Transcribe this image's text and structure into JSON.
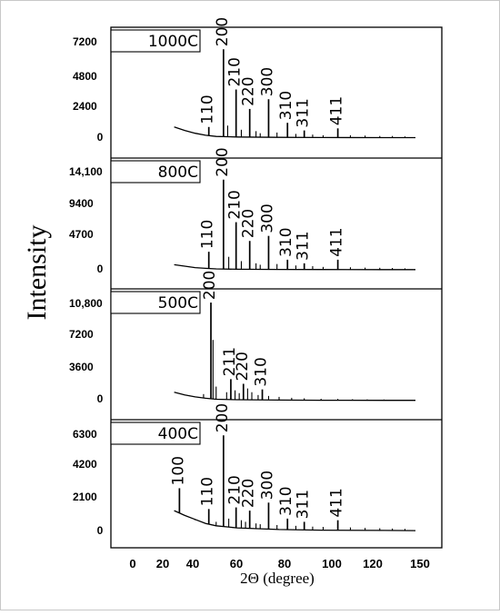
{
  "chart_data": {
    "type": "line",
    "ylabel": "Intensity",
    "xlabel": "2Θ (degree)",
    "x_ticks": [
      "0",
      "20",
      "40",
      "60",
      "80",
      "100",
      "120",
      "150"
    ],
    "xlim": [
      0,
      150
    ],
    "panels": [
      {
        "label": "1000C",
        "y_ticks": [
          "7200",
          "4800",
          "2400",
          "0"
        ],
        "ylim": [
          0,
          7200
        ],
        "baseline": [
          [
            30,
            800
          ],
          [
            35,
            550
          ],
          [
            40,
            350
          ],
          [
            45,
            200
          ],
          [
            50,
            120
          ],
          [
            60,
            80
          ],
          [
            80,
            50
          ],
          [
            100,
            40
          ],
          [
            130,
            30
          ],
          [
            145,
            30
          ]
        ],
        "peaks": [
          {
            "x": 46.5,
            "y": 800,
            "label": "110"
          },
          {
            "x": 53.5,
            "y": 6400,
            "label": "200"
          },
          {
            "x": 59.5,
            "y": 3500,
            "label": "210"
          },
          {
            "x": 66,
            "y": 2100,
            "label": "220"
          },
          {
            "x": 75,
            "y": 2800,
            "label": "300"
          },
          {
            "x": 84,
            "y": 1100,
            "label": "310"
          },
          {
            "x": 92,
            "y": 550,
            "label": "311"
          },
          {
            "x": 108,
            "y": 700,
            "label": "411"
          }
        ],
        "minor_peaks": [
          [
            55.5,
            900
          ],
          [
            62,
            600
          ],
          [
            69,
            500
          ],
          [
            71,
            350
          ],
          [
            79,
            400
          ],
          [
            88,
            300
          ],
          [
            96,
            250
          ],
          [
            101,
            200
          ],
          [
            114,
            200
          ],
          [
            121,
            180
          ],
          [
            128,
            150
          ],
          [
            134,
            150
          ],
          [
            140,
            120
          ]
        ]
      },
      {
        "label": "800C",
        "y_ticks": [
          "14,100",
          "9400",
          "4700",
          "0"
        ],
        "ylim": [
          0,
          14100
        ],
        "baseline": [
          [
            30,
            700
          ],
          [
            35,
            500
          ],
          [
            40,
            300
          ],
          [
            45,
            200
          ],
          [
            50,
            120
          ],
          [
            60,
            80
          ],
          [
            80,
            50
          ],
          [
            100,
            40
          ],
          [
            130,
            30
          ],
          [
            145,
            30
          ]
        ],
        "peaks": [
          {
            "x": 46.5,
            "y": 2500,
            "label": "110"
          },
          {
            "x": 53.5,
            "y": 12500,
            "label": "200"
          },
          {
            "x": 59.5,
            "y": 6600,
            "label": "210"
          },
          {
            "x": 66,
            "y": 4000,
            "label": "220"
          },
          {
            "x": 75,
            "y": 4700,
            "label": "300"
          },
          {
            "x": 84,
            "y": 1400,
            "label": "310"
          },
          {
            "x": 92,
            "y": 900,
            "label": "311"
          },
          {
            "x": 108,
            "y": 1400,
            "label": "411"
          }
        ],
        "minor_peaks": [
          [
            38,
            400
          ],
          [
            56,
            1800
          ],
          [
            62,
            1200
          ],
          [
            69,
            900
          ],
          [
            71,
            700
          ],
          [
            79,
            800
          ],
          [
            88,
            600
          ],
          [
            96,
            500
          ],
          [
            101,
            400
          ],
          [
            114,
            350
          ],
          [
            121,
            300
          ],
          [
            128,
            280
          ],
          [
            134,
            250
          ],
          [
            140,
            200
          ]
        ]
      },
      {
        "label": "500C",
        "y_ticks": [
          "10,800",
          "7200",
          "3600",
          "0"
        ],
        "ylim": [
          0,
          10800
        ],
        "baseline": [
          [
            30,
            900
          ],
          [
            35,
            600
          ],
          [
            40,
            400
          ],
          [
            45,
            250
          ],
          [
            50,
            150
          ],
          [
            60,
            100
          ],
          [
            80,
            60
          ],
          [
            100,
            40
          ],
          [
            130,
            30
          ],
          [
            145,
            30
          ]
        ],
        "peaks": [
          {
            "x": 47.5,
            "y": 10500,
            "label": "200"
          },
          {
            "x": 57,
            "y": 2300,
            "label": "211"
          },
          {
            "x": 63,
            "y": 1800,
            "label": "220"
          },
          {
            "x": 72,
            "y": 1200,
            "label": "310"
          }
        ],
        "minor_peaks": [
          [
            44,
            700
          ],
          [
            48.5,
            6500
          ],
          [
            50,
            1500
          ],
          [
            55,
            900
          ],
          [
            59,
            1100
          ],
          [
            61,
            800
          ],
          [
            65,
            1300
          ],
          [
            67,
            900
          ],
          [
            70,
            600
          ],
          [
            75,
            500
          ],
          [
            80,
            400
          ],
          [
            86,
            300
          ],
          [
            92,
            250
          ],
          [
            100,
            200
          ],
          [
            108,
            180
          ],
          [
            115,
            150
          ],
          [
            122,
            130
          ],
          [
            130,
            120
          ]
        ]
      },
      {
        "label": "400C",
        "y_ticks": [
          "6300",
          "4200",
          "2100",
          "0"
        ],
        "ylim": [
          0,
          6300
        ],
        "baseline": [
          [
            30,
            1300
          ],
          [
            35,
            1000
          ],
          [
            40,
            750
          ],
          [
            45,
            500
          ],
          [
            50,
            350
          ],
          [
            60,
            220
          ],
          [
            80,
            120
          ],
          [
            100,
            80
          ],
          [
            130,
            60
          ],
          [
            145,
            50
          ]
        ],
        "peaks": [
          {
            "x": 32.5,
            "y": 2700,
            "label": "100"
          },
          {
            "x": 46.5,
            "y": 1400,
            "label": "110"
          },
          {
            "x": 53.5,
            "y": 6000,
            "label": "200"
          },
          {
            "x": 59.5,
            "y": 1500,
            "label": "210"
          },
          {
            "x": 66,
            "y": 1300,
            "label": "220"
          },
          {
            "x": 75,
            "y": 1800,
            "label": "300"
          },
          {
            "x": 84,
            "y": 800,
            "label": "310"
          },
          {
            "x": 92,
            "y": 600,
            "label": "311"
          },
          {
            "x": 108,
            "y": 700,
            "label": "411"
          }
        ],
        "minor_peaks": [
          [
            40,
            700
          ],
          [
            50,
            600
          ],
          [
            56,
            800
          ],
          [
            62,
            700
          ],
          [
            64,
            600
          ],
          [
            69,
            500
          ],
          [
            71,
            450
          ],
          [
            79,
            400
          ],
          [
            88,
            350
          ],
          [
            96,
            300
          ],
          [
            101,
            280
          ],
          [
            114,
            250
          ],
          [
            121,
            220
          ],
          [
            128,
            200
          ],
          [
            134,
            180
          ],
          [
            140,
            160
          ]
        ]
      }
    ]
  }
}
